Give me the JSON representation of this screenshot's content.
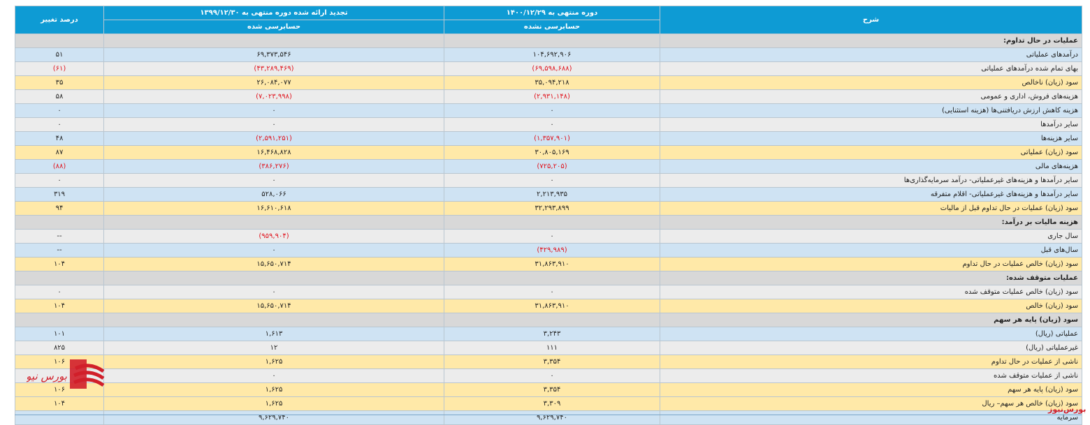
{
  "header": {
    "desc_label": "شرح",
    "col1_title": "دوره منتهی به ۱۴۰۰/۱۲/۲۹",
    "col1_sub": "حسابرسی نشده",
    "col2_title": "تجدید ارائه شده دوره منتهی به ۱۳۹۹/۱۲/۳۰",
    "col2_sub": "حسابرسی شده",
    "col3_title": "درصد تغییر"
  },
  "rows": [
    {
      "type": "section",
      "desc": "عملیات در حال تداوم:",
      "c1": "",
      "c2": "",
      "c3": ""
    },
    {
      "type": "blue",
      "desc": "درآمدهای عملیاتی",
      "c1": "۱۰۴,۶۹۲,۹۰۶",
      "c2": "۶۹,۳۷۳,۵۴۶",
      "c3": "۵۱"
    },
    {
      "type": "gray",
      "desc": "بهای تمام شده درآمدهای عملیاتی",
      "c1": "(۶۹,۵۹۸,۶۸۸)",
      "c2": "(۴۳,۲۸۹,۴۶۹)",
      "c3": "(۶۱)"
    },
    {
      "type": "yellow",
      "desc": "سود (زیان) ناخالص",
      "c1": "۳۵,۰۹۴,۲۱۸",
      "c2": "۲۶,۰۸۴,۰۷۷",
      "c3": "۳۵"
    },
    {
      "type": "gray",
      "desc": "هزینه‌های فروش، اداری و عمومی",
      "c1": "(۲,۹۳۱,۱۴۸)",
      "c2": "(۷,۰۲۳,۹۹۸)",
      "c3": "۵۸"
    },
    {
      "type": "blue",
      "desc": "هزینه کاهش ارزش دریافتنی‌ها (هزینه استثنایی)",
      "c1": "۰",
      "c2": "۰",
      "c3": "۰"
    },
    {
      "type": "gray",
      "desc": "سایر درآمدها",
      "c1": "۰",
      "c2": "۰",
      "c3": "۰"
    },
    {
      "type": "blue",
      "desc": "سایر هزینه‌ها",
      "c1": "(۱,۳۵۷,۹۰۱)",
      "c2": "(۲,۵۹۱,۲۵۱)",
      "c3": "۴۸"
    },
    {
      "type": "yellow",
      "desc": "سود (زیان) عملیاتی",
      "c1": "۳۰,۸۰۵,۱۶۹",
      "c2": "۱۶,۴۶۸,۸۲۸",
      "c3": "۸۷"
    },
    {
      "type": "blue",
      "desc": "هزینه‌های مالی",
      "c1": "(۷۲۵,۲۰۵)",
      "c2": "(۳۸۶,۲۷۶)",
      "c3": "(۸۸)"
    },
    {
      "type": "gray",
      "desc": "سایر درآمدها و هزینه‌های غیرعملیاتی- درآمد سرمایه‌گذاری‌ها",
      "c1": "۰",
      "c2": "۰",
      "c3": "۰"
    },
    {
      "type": "blue",
      "desc": "سایر درآمدها و هزینه‌های غیرعملیاتی- اقلام متفرقه",
      "c1": "۲,۲۱۳,۹۳۵",
      "c2": "۵۲۸,۰۶۶",
      "c3": "۳۱۹"
    },
    {
      "type": "yellow",
      "desc": "سود (زیان) عملیات در حال تداوم قبل از مالیات",
      "c1": "۳۲,۲۹۳,۸۹۹",
      "c2": "۱۶,۶۱۰,۶۱۸",
      "c3": "۹۴"
    },
    {
      "type": "section",
      "desc": "هزینه مالیات بر درآمد:",
      "c1": "",
      "c2": "",
      "c3": ""
    },
    {
      "type": "gray",
      "desc": "سال جاری",
      "c1": "۰",
      "c2": "(۹۵۹,۹۰۴)",
      "c3": "--"
    },
    {
      "type": "blue",
      "desc": "سال‌های قبل",
      "c1": "(۴۲۹,۹۸۹)",
      "c2": "۰",
      "c3": "--"
    },
    {
      "type": "yellow",
      "desc": "سود (زیان) خالص عملیات در حال تداوم",
      "c1": "۳۱,۸۶۳,۹۱۰",
      "c2": "۱۵,۶۵۰,۷۱۴",
      "c3": "۱۰۴"
    },
    {
      "type": "section",
      "desc": "عملیات متوقف شده:",
      "c1": "",
      "c2": "",
      "c3": ""
    },
    {
      "type": "gray",
      "desc": "سود (زیان) خالص عملیات متوقف شده",
      "c1": "۰",
      "c2": "۰",
      "c3": "۰"
    },
    {
      "type": "yellow",
      "desc": "سود (زیان) خالص",
      "c1": "۳۱,۸۶۳,۹۱۰",
      "c2": "۱۵,۶۵۰,۷۱۴",
      "c3": "۱۰۴"
    },
    {
      "type": "section",
      "desc": "سود (زیان) پایه هر سهم",
      "c1": "",
      "c2": "",
      "c3": ""
    },
    {
      "type": "blue",
      "desc": "عملیاتی (ریال)",
      "c1": "۳,۲۴۳",
      "c2": "۱,۶۱۳",
      "c3": "۱۰۱"
    },
    {
      "type": "gray",
      "desc": "غیرعملیاتی (ریال)",
      "c1": "۱۱۱",
      "c2": "۱۲",
      "c3": "۸۲۵"
    },
    {
      "type": "yellow",
      "desc": "ناشی از عملیات در حال تداوم",
      "c1": "۳,۳۵۴",
      "c2": "۱,۶۲۵",
      "c3": "۱۰۶"
    },
    {
      "type": "gray",
      "desc": "ناشی از عملیات متوقف شده",
      "c1": "۰",
      "c2": "۰",
      "c3": ""
    },
    {
      "type": "yellow",
      "desc": "سود (زیان) پایه هر سهم",
      "c1": "۳,۳۵۴",
      "c2": "۱,۶۲۵",
      "c3": "۱۰۶"
    },
    {
      "type": "yellow",
      "desc": "سود (زیان) خالص هر سهم– ریال",
      "c1": "۳,۳۰۹",
      "c2": "۱,۶۲۵",
      "c3": "۱۰۴"
    },
    {
      "type": "last",
      "desc": "سرمایه",
      "c1": "۹,۶۲۹,۷۴۰",
      "c2": "۹,۶۲۹,۷۴۰",
      "c3": ""
    }
  ],
  "watermark": "بورس‌نیوز",
  "logo_text": "بورس نیوز",
  "colors": {
    "header": "#0e9bd4",
    "blue": "#cfe3f3",
    "gray": "#ececec",
    "yellow": "#ffe9a8",
    "section": "#d8d8d8",
    "negative": "#e0141e",
    "brand": "#d11f2a"
  }
}
